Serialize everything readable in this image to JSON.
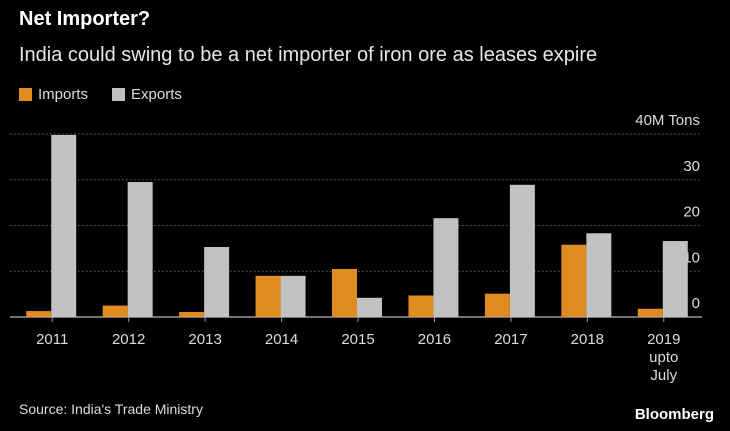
{
  "title": "Net Importer?",
  "subtitle": "India could swing to be a net importer of iron ore as leases expire",
  "source": "Source: India's Trade Ministry",
  "brand": "Bloomberg",
  "colors": {
    "imports": "#e08a22",
    "exports": "#c2c2c2",
    "background": "#000000"
  },
  "chart_data": {
    "type": "bar",
    "categories": [
      "2011",
      "2012",
      "2013",
      "2014",
      "2015",
      "2016",
      "2017",
      "2018",
      "2019\nupto\nJuly"
    ],
    "series": [
      {
        "name": "Imports",
        "values": [
          1.3,
          2.5,
          1.1,
          9.0,
          10.5,
          4.7,
          5.1,
          15.8,
          1.8
        ]
      },
      {
        "name": "Exports",
        "values": [
          39.8,
          29.5,
          15.3,
          9.0,
          4.2,
          21.6,
          28.9,
          18.3,
          16.6
        ]
      }
    ],
    "yticks": [
      {
        "value": 40,
        "label": "40M Tons"
      },
      {
        "value": 30,
        "label": "30"
      },
      {
        "value": 20,
        "label": "20"
      },
      {
        "value": 10,
        "label": "10"
      },
      {
        "value": 0,
        "label": "0"
      }
    ],
    "ylim": [
      0,
      40
    ],
    "grid": true,
    "legend_position": "top-left"
  }
}
